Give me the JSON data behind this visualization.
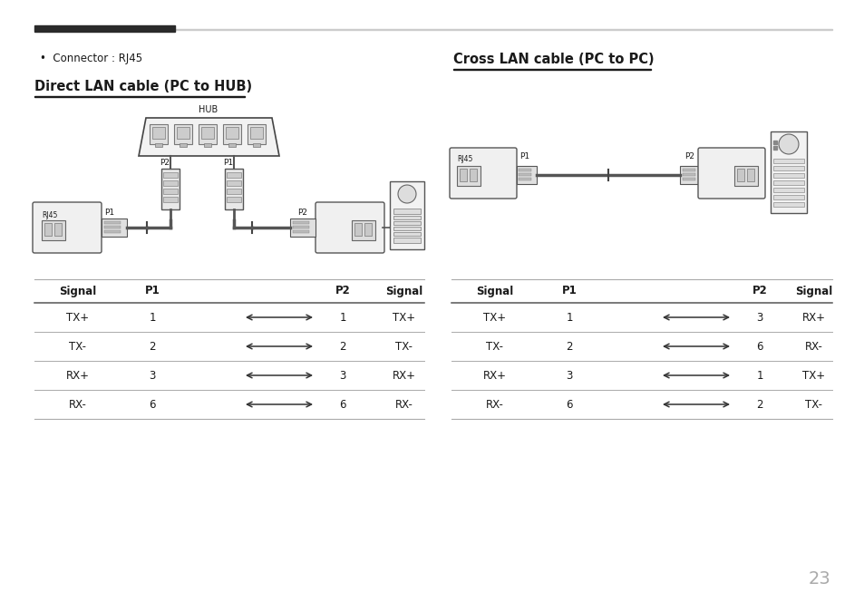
{
  "title_left": "Direct LAN cable (PC to HUB)",
  "title_right": "Cross LAN cable (PC to PC)",
  "bullet_text": "•  Connector : RJ45",
  "page_number": "23",
  "left_table": {
    "headers": [
      "Signal",
      "P1",
      "",
      "P2",
      "Signal"
    ],
    "rows": [
      [
        "TX+",
        "1",
        "",
        "1",
        "TX+"
      ],
      [
        "TX-",
        "2",
        "",
        "2",
        "TX-"
      ],
      [
        "RX+",
        "3",
        "",
        "3",
        "RX+"
      ],
      [
        "RX-",
        "6",
        "",
        "6",
        "RX-"
      ]
    ]
  },
  "right_table": {
    "headers": [
      "Signal",
      "P1",
      "",
      "P2",
      "Signal"
    ],
    "rows": [
      [
        "TX+",
        "1",
        "",
        "3",
        "RX+"
      ],
      [
        "TX-",
        "2",
        "",
        "6",
        "RX-"
      ],
      [
        "RX+",
        "3",
        "",
        "1",
        "TX+"
      ],
      [
        "RX-",
        "6",
        "",
        "2",
        "TX-"
      ]
    ]
  },
  "bg_color": "#ffffff",
  "text_color": "#1a1a1a",
  "table_header_bold": true
}
